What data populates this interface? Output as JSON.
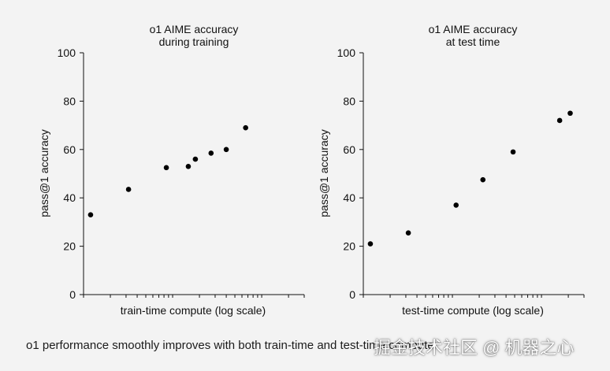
{
  "chart_data": [
    {
      "type": "scatter",
      "title": [
        "o1 AIME accuracy",
        "during training"
      ],
      "xlabel": "train-time compute (log scale)",
      "ylabel": "pass@1 accuracy",
      "ylim": [
        0,
        100
      ],
      "yticks": [
        0,
        20,
        40,
        60,
        80,
        100
      ],
      "xscale": "log",
      "x": [
        1.2,
        3.2,
        8.5,
        15.0,
        18.0,
        27.0,
        40.0,
        66.0
      ],
      "y": [
        33,
        43.5,
        52.5,
        53,
        56,
        58.5,
        60,
        69
      ],
      "grid": false,
      "legend": "none"
    },
    {
      "type": "scatter",
      "title": [
        "o1 AIME accuracy",
        "at test time"
      ],
      "xlabel": "test-time compute (log scale)",
      "ylabel": "pass@1 accuracy",
      "ylim": [
        0,
        100
      ],
      "yticks": [
        0,
        20,
        40,
        60,
        80,
        100
      ],
      "xscale": "log",
      "x": [
        1.2,
        3.2,
        11.0,
        22.0,
        48.0,
        160.0,
        210.0
      ],
      "y": [
        21,
        25.5,
        37,
        47.5,
        59,
        72,
        75
      ],
      "grid": false,
      "legend": "none"
    }
  ],
  "caption": "o1 performance smoothly improves with both train-time and test-time compute",
  "watermark": "掘金技术社区 @ 机器之心"
}
